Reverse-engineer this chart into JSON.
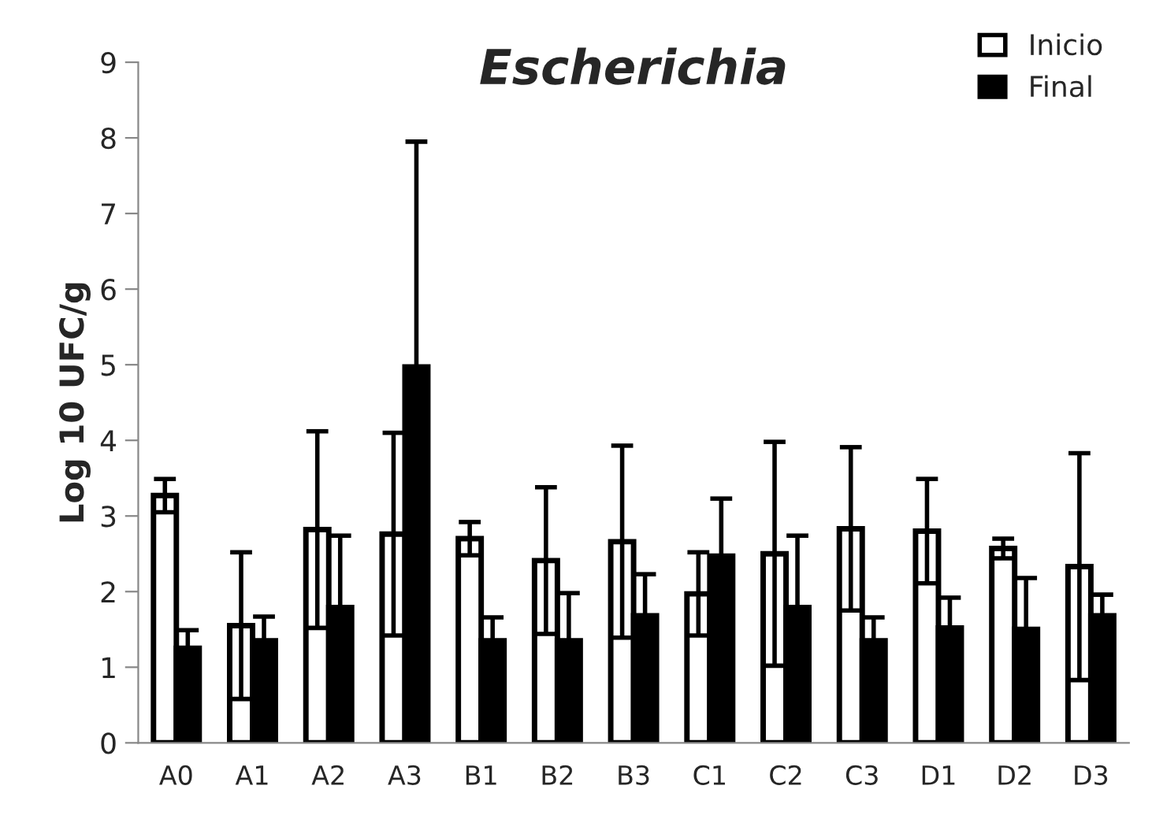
{
  "chart_data": {
    "type": "bar",
    "title": "Escherichia",
    "ylabel": "Log 10 UFC/g",
    "categories": [
      "A0",
      "A1",
      "A2",
      "A3",
      "B1",
      "B2",
      "B3",
      "C1",
      "C2",
      "C3",
      "D1",
      "D2",
      "D3"
    ],
    "series": [
      {
        "name": "Inicio",
        "color": "#ffffff",
        "values": [
          3.27,
          1.55,
          2.82,
          2.76,
          2.7,
          2.41,
          2.66,
          1.97,
          2.5,
          2.83,
          2.8,
          2.57,
          2.33
        ],
        "errors": [
          0.22,
          0.97,
          1.3,
          1.34,
          0.22,
          0.97,
          1.27,
          0.55,
          1.48,
          1.08,
          0.69,
          0.13,
          1.5
        ]
      },
      {
        "name": "Final",
        "color": "#000000",
        "values": [
          1.25,
          1.35,
          1.79,
          4.97,
          1.35,
          1.35,
          1.68,
          2.47,
          1.79,
          1.35,
          1.52,
          1.5,
          1.68
        ],
        "errors": [
          0.24,
          0.32,
          0.95,
          2.98,
          0.31,
          0.63,
          0.55,
          0.76,
          0.95,
          0.31,
          0.4,
          0.68,
          0.28
        ]
      }
    ],
    "ylim": [
      0,
      9
    ],
    "yticks": [
      0,
      1,
      2,
      3,
      4,
      5,
      6,
      7,
      8,
      9
    ],
    "grid": false,
    "legend": "top right"
  }
}
